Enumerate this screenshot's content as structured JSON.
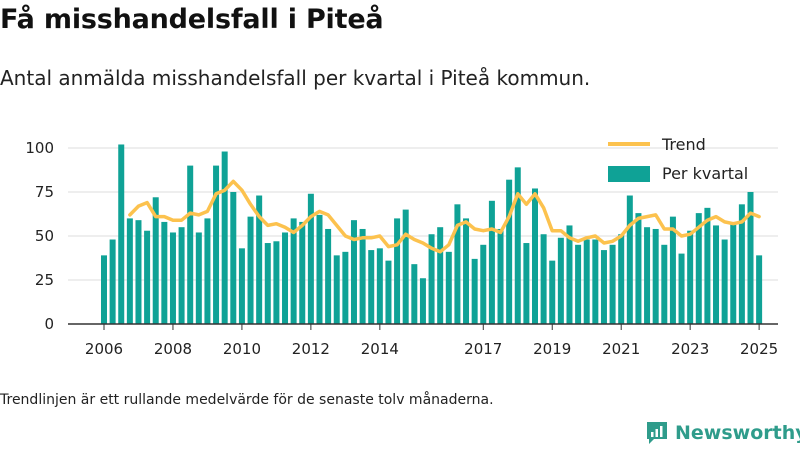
{
  "title": "Få misshandelsfall i Piteå",
  "subtitle": "Antal anmälda misshandelsfall per kvartal i Piteå kommun.",
  "footnote": "Trendlinjen är ett rullande medelvärde för de senaste tolv månaderna.",
  "brand": {
    "name": "Newsworthy",
    "icon": "newsworthy-logo-icon",
    "color": "#2f9c8b"
  },
  "colors": {
    "bar": "#0fa296",
    "trend": "#fcc24e",
    "grid": "#dddddd"
  },
  "chart_data": {
    "type": "bar",
    "x_start": "2006 Q1",
    "x_ticks": [
      "2006",
      "2008",
      "2010",
      "2012",
      "2014",
      "2017",
      "2019",
      "2021",
      "2023",
      "2025"
    ],
    "y_ticks": [
      "0",
      "25",
      "50",
      "75",
      "100"
    ],
    "ylim": [
      0,
      100
    ],
    "legend_position": "top-right",
    "grid": true,
    "series": [
      {
        "name": "Per kvartal",
        "type": "bar",
        "values": [
          39,
          48,
          102,
          60,
          59,
          53,
          72,
          58,
          52,
          55,
          90,
          52,
          60,
          90,
          98,
          75,
          43,
          61,
          73,
          46,
          47,
          52,
          60,
          58,
          74,
          62,
          54,
          39,
          41,
          59,
          54,
          42,
          43,
          36,
          60,
          65,
          34,
          26,
          51,
          55,
          41,
          68,
          60,
          37,
          45,
          70,
          54,
          82,
          89,
          46,
          77,
          51,
          36,
          49,
          56,
          45,
          48,
          48,
          42,
          45,
          51,
          73,
          63,
          55,
          54,
          45,
          61,
          40,
          53,
          63,
          66,
          56,
          48,
          57,
          68,
          75,
          39
        ]
      },
      {
        "name": "Trend",
        "type": "line",
        "values": [
          null,
          null,
          null,
          62,
          67,
          69,
          61,
          61,
          59,
          59,
          63,
          62,
          64,
          74,
          76,
          81,
          76,
          68,
          61,
          56,
          57,
          55,
          52,
          56,
          61,
          64,
          62,
          56,
          50,
          48,
          49,
          49,
          50,
          44,
          45,
          51,
          48,
          46,
          43,
          41,
          45,
          56,
          58,
          54,
          53,
          54,
          52,
          61,
          74,
          68,
          74,
          66,
          53,
          53,
          49,
          47,
          49,
          50,
          46,
          47,
          50,
          56,
          60,
          61,
          62,
          54,
          54,
          50,
          51,
          55,
          59,
          61,
          58,
          57,
          58,
          63,
          61
        ]
      }
    ]
  }
}
